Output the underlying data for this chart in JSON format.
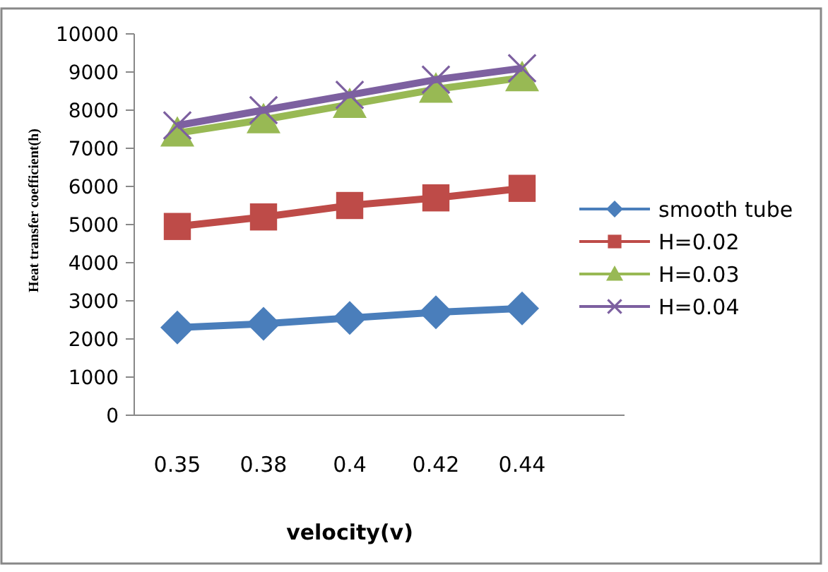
{
  "chart_data": {
    "type": "line",
    "xlabel": "velocity(v)",
    "ylabel": "Heat transfer coefficient(h)",
    "categories": [
      "0.35",
      "0.38",
      "0.4",
      "0.42",
      "0.44"
    ],
    "ylim": [
      0,
      10000
    ],
    "yticks": [
      0,
      1000,
      2000,
      3000,
      4000,
      5000,
      6000,
      7000,
      8000,
      9000,
      10000
    ],
    "grid": false,
    "legend": "right",
    "series": [
      {
        "name": "smooth tube",
        "color": "#4a7ebb",
        "marker": "diamond",
        "values": [
          2300,
          2400,
          2550,
          2700,
          2800
        ]
      },
      {
        "name": "H=0.02",
        "color": "#be4b48",
        "marker": "square",
        "values": [
          4950,
          5200,
          5500,
          5700,
          5950
        ]
      },
      {
        "name": "H=0.03",
        "color": "#98b954",
        "marker": "triangle",
        "values": [
          7400,
          7750,
          8150,
          8550,
          8850
        ]
      },
      {
        "name": "H=0.04",
        "color": "#7d60a0",
        "marker": "cross",
        "values": [
          7600,
          8000,
          8400,
          8800,
          9100
        ]
      }
    ]
  }
}
